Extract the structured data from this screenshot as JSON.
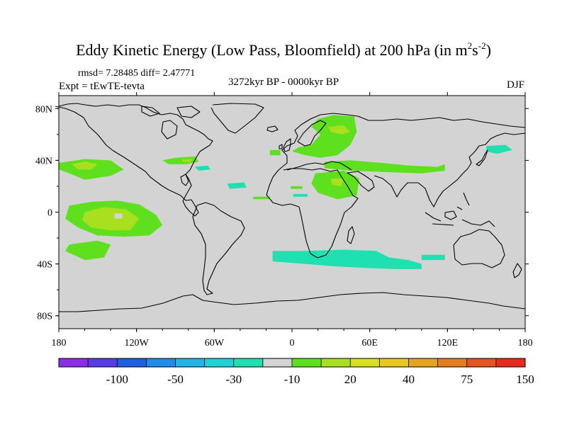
{
  "title": {
    "main": "Eddy Kinetic Energy (Low Pass, Bloomfield) at 200 hPa (in m",
    "sup1": "2",
    "mid": "s",
    "sup2": "-2",
    "end": ")"
  },
  "stats": "rmsd= 7.28485 diff= 2.47771",
  "expt": "Expt = tEwTE-tevta",
  "period": "3272kyr BP - 0000kyr BP",
  "season": "DJF",
  "colors": {
    "land_background": "#d3d3d3",
    "coastline": "#000000"
  },
  "chart_data": {
    "type": "heatmap",
    "projection": "cylindrical-equidistant",
    "xlim": [
      -180,
      180
    ],
    "ylim": [
      -90,
      90
    ],
    "x_ticks": [
      {
        "value": -180,
        "label": "180"
      },
      {
        "value": -120,
        "label": "120W"
      },
      {
        "value": -60,
        "label": "60W"
      },
      {
        "value": 0,
        "label": "0"
      },
      {
        "value": 60,
        "label": "60E"
      },
      {
        "value": 120,
        "label": "120E"
      },
      {
        "value": 180,
        "label": "180"
      }
    ],
    "y_ticks": [
      {
        "value": 80,
        "label": "80N"
      },
      {
        "value": 40,
        "label": "40N"
      },
      {
        "value": 0,
        "label": "0"
      },
      {
        "value": -40,
        "label": "40S"
      },
      {
        "value": -80,
        "label": "80S"
      }
    ],
    "colorbar": {
      "colors": [
        "#8b2ee6",
        "#5a3ce6",
        "#1f5fe0",
        "#1e8ce8",
        "#22b3e8",
        "#1fd2d6",
        "#1fe0b0",
        "#d3d3d3",
        "#5fe01f",
        "#a8e01f",
        "#d6e01f",
        "#e6c81f",
        "#e6a51f",
        "#e67d1f",
        "#e6551f",
        "#e62b1f"
      ],
      "labels": [
        {
          "label": "-100",
          "boundary": 2
        },
        {
          "label": "-50",
          "boundary": 4
        },
        {
          "label": "-30",
          "boundary": 6
        },
        {
          "label": "-10",
          "boundary": 8
        },
        {
          "label": "20",
          "boundary": 10
        },
        {
          "label": "40",
          "boundary": 12
        },
        {
          "label": "75",
          "boundary": 14
        },
        {
          "label": "150",
          "boundary": 16
        }
      ]
    },
    "regions": [
      {
        "name": "north-pacific-east",
        "level": "10-20",
        "color": "#5fe01f",
        "points": [
          [
            -180,
            38
          ],
          [
            -160,
            41
          ],
          [
            -140,
            40
          ],
          [
            -130,
            33
          ],
          [
            -140,
            28
          ],
          [
            -160,
            25
          ],
          [
            -172,
            30
          ],
          [
            -180,
            33
          ]
        ]
      },
      {
        "name": "north-pacific-core",
        "level": "20-30",
        "color": "#a8e01f",
        "points": [
          [
            -170,
            37
          ],
          [
            -160,
            39
          ],
          [
            -150,
            37
          ],
          [
            -155,
            33
          ],
          [
            -165,
            33
          ]
        ]
      },
      {
        "name": "us-east-coast",
        "level": "10-20",
        "color": "#5fe01f",
        "points": [
          [
            -100,
            40
          ],
          [
            -90,
            42
          ],
          [
            -75,
            43
          ],
          [
            -72,
            39
          ],
          [
            -82,
            37
          ],
          [
            -95,
            37
          ]
        ]
      },
      {
        "name": "us-east-core",
        "level": "20-30",
        "color": "#a8e01f",
        "points": [
          [
            -85,
            41
          ],
          [
            -77,
            41
          ],
          [
            -78,
            39
          ],
          [
            -84,
            39
          ]
        ]
      },
      {
        "name": "western-atlantic",
        "level": "-20--10",
        "color": "#1fe0b0",
        "points": [
          [
            -75,
            35
          ],
          [
            -65,
            36
          ],
          [
            -63,
            33
          ],
          [
            -72,
            32
          ]
        ]
      },
      {
        "name": "central-atlantic",
        "level": "-20--10",
        "color": "#1fe0b0",
        "points": [
          [
            -50,
            22
          ],
          [
            -37,
            23
          ],
          [
            -35,
            19
          ],
          [
            -48,
            18
          ]
        ]
      },
      {
        "name": "europe-west-coast",
        "level": "10-20",
        "color": "#5fe01f",
        "points": [
          [
            -17,
            48
          ],
          [
            -9,
            48
          ],
          [
            -9,
            44
          ],
          [
            -17,
            44
          ]
        ]
      },
      {
        "name": "eurasia-north",
        "level": "10-20",
        "color": "#5fe01f",
        "points": [
          [
            20,
            72
          ],
          [
            32,
            75
          ],
          [
            48,
            74
          ],
          [
            50,
            62
          ],
          [
            45,
            52
          ],
          [
            35,
            44
          ],
          [
            22,
            42
          ],
          [
            10,
            44
          ],
          [
            0,
            47
          ],
          [
            5,
            50
          ],
          [
            15,
            52
          ],
          [
            22,
            60
          ],
          [
            15,
            66
          ]
        ]
      },
      {
        "name": "eurasia-north-core",
        "level": "20-30",
        "color": "#a8e01f",
        "points": [
          [
            28,
            66
          ],
          [
            40,
            67
          ],
          [
            45,
            62
          ],
          [
            38,
            60
          ],
          [
            30,
            62
          ]
        ]
      },
      {
        "name": "asian-jet",
        "level": "10-20",
        "color": "#5fe01f",
        "points": [
          [
            25,
            39
          ],
          [
            45,
            40
          ],
          [
            70,
            38
          ],
          [
            90,
            36
          ],
          [
            112,
            35
          ],
          [
            118,
            37
          ],
          [
            118,
            32
          ],
          [
            100,
            30
          ],
          [
            70,
            31
          ],
          [
            45,
            32
          ],
          [
            25,
            34
          ]
        ]
      },
      {
        "name": "north-africa",
        "level": "10-20",
        "color": "#5fe01f",
        "points": [
          [
            18,
            30
          ],
          [
            40,
            32
          ],
          [
            52,
            26
          ],
          [
            50,
            13
          ],
          [
            35,
            10
          ],
          [
            20,
            15
          ],
          [
            15,
            22
          ]
        ]
      },
      {
        "name": "north-africa-core",
        "level": "20-30",
        "color": "#a8e01f",
        "points": [
          [
            30,
            26
          ],
          [
            40,
            26
          ],
          [
            38,
            20
          ],
          [
            31,
            21
          ]
        ]
      },
      {
        "name": "sahara-west",
        "level": "10-20",
        "color": "#5fe01f",
        "points": [
          [
            -1,
            20
          ],
          [
            8,
            20
          ],
          [
            8,
            18
          ],
          [
            -1,
            18
          ]
        ]
      },
      {
        "name": "west-africa-strip",
        "level": "10-20",
        "color": "#5fe01f",
        "points": [
          [
            -30,
            12
          ],
          [
            -17,
            12
          ],
          [
            -17,
            10
          ],
          [
            -30,
            10
          ]
        ]
      },
      {
        "name": "gulf-of-guinea",
        "level": "-20--10",
        "color": "#1fe0b0",
        "points": [
          [
            1,
            14
          ],
          [
            12,
            14
          ],
          [
            12,
            12
          ],
          [
            1,
            12
          ]
        ]
      },
      {
        "name": "north-pacific-west",
        "level": "-20--10",
        "color": "#1fe0b0",
        "points": [
          [
            150,
            51
          ],
          [
            165,
            52
          ],
          [
            170,
            48
          ],
          [
            158,
            45
          ],
          [
            150,
            47
          ]
        ]
      },
      {
        "name": "tropical-pacific",
        "level": "10-20",
        "color": "#5fe01f",
        "points": [
          [
            -172,
            5
          ],
          [
            -155,
            8
          ],
          [
            -135,
            9
          ],
          [
            -118,
            6
          ],
          [
            -105,
            -2
          ],
          [
            -100,
            -10
          ],
          [
            -110,
            -18
          ],
          [
            -130,
            -19
          ],
          [
            -150,
            -18
          ],
          [
            -165,
            -12
          ],
          [
            -175,
            -5
          ]
        ]
      },
      {
        "name": "tropical-pacific-core",
        "level": "20-30",
        "color": "#a8e01f",
        "points": [
          [
            -160,
            0
          ],
          [
            -145,
            4
          ],
          [
            -128,
            2
          ],
          [
            -118,
            -5
          ],
          [
            -125,
            -14
          ],
          [
            -140,
            -14
          ],
          [
            -155,
            -12
          ],
          [
            -162,
            -6
          ]
        ]
      },
      {
        "name": "tropical-pacific-hole",
        "level": "-10-10",
        "color": "#d3d3d3",
        "points": [
          [
            -137,
            -1
          ],
          [
            -131,
            -1
          ],
          [
            -131,
            -5
          ],
          [
            -137,
            -5
          ]
        ]
      },
      {
        "name": "south-pacific",
        "level": "10-20",
        "color": "#5fe01f",
        "points": [
          [
            -172,
            -25
          ],
          [
            -150,
            -22
          ],
          [
            -140,
            -25
          ],
          [
            -145,
            -35
          ],
          [
            -160,
            -37
          ],
          [
            -175,
            -30
          ]
        ]
      },
      {
        "name": "south-atlantic-indian",
        "level": "-20--10",
        "color": "#1fe0b0",
        "points": [
          [
            -15,
            -30
          ],
          [
            10,
            -30
          ],
          [
            40,
            -29
          ],
          [
            65,
            -30
          ],
          [
            75,
            -35
          ],
          [
            90,
            -37
          ],
          [
            100,
            -40
          ],
          [
            100,
            -44
          ],
          [
            80,
            -44
          ],
          [
            55,
            -43
          ],
          [
            35,
            -42
          ],
          [
            10,
            -40
          ],
          [
            -15,
            -38
          ]
        ]
      },
      {
        "name": "south-indian-east",
        "level": "-20--10",
        "color": "#1fe0b0",
        "points": [
          [
            100,
            -33
          ],
          [
            118,
            -33
          ],
          [
            118,
            -37
          ],
          [
            100,
            -37
          ]
        ]
      }
    ]
  }
}
